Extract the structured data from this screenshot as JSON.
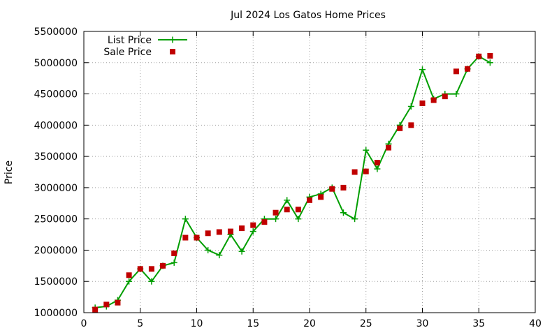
{
  "chart_data": {
    "type": "line",
    "title": "Jul 2024 Los Gatos Home Prices",
    "xlabel": "",
    "ylabel": "Price",
    "xlim": [
      0,
      40
    ],
    "ylim": [
      1000000,
      5500000
    ],
    "xticks": [
      0,
      5,
      10,
      15,
      20,
      25,
      30,
      35,
      40
    ],
    "yticks": [
      1000000,
      1500000,
      2000000,
      2500000,
      3000000,
      3500000,
      4000000,
      4500000,
      5000000,
      5500000
    ],
    "grid": true,
    "legend": "top-left",
    "series": [
      {
        "name": "List Price",
        "style": "linespoints",
        "marker": "plus",
        "color": "#009e00",
        "x": [
          1,
          2,
          3,
          4,
          5,
          6,
          7,
          8,
          9,
          10,
          11,
          12,
          13,
          14,
          15,
          16,
          17,
          18,
          19,
          20,
          21,
          22,
          23,
          24,
          25,
          26,
          27,
          28,
          29,
          30,
          31,
          32,
          33,
          34,
          35,
          36
        ],
        "values": [
          1080000,
          1100000,
          1200000,
          1500000,
          1700000,
          1500000,
          1750000,
          1800000,
          2500000,
          2200000,
          2000000,
          1920000,
          2250000,
          1980000,
          2300000,
          2500000,
          2500000,
          2800000,
          2500000,
          2850000,
          2900000,
          3000000,
          2600000,
          2500000,
          3600000,
          3300000,
          3700000,
          4000000,
          4300000,
          4890000,
          4420000,
          4500000,
          4500000,
          4900000,
          5100000,
          5000000
        ]
      },
      {
        "name": "Sale Price",
        "style": "points",
        "marker": "square",
        "color": "#c00000",
        "x": [
          1,
          2,
          3,
          4,
          5,
          6,
          7,
          8,
          9,
          10,
          11,
          12,
          13,
          14,
          15,
          16,
          17,
          18,
          19,
          20,
          21,
          22,
          23,
          24,
          25,
          26,
          27,
          28,
          29,
          30,
          31,
          32,
          33,
          34,
          35,
          36
        ],
        "values": [
          1050000,
          1130000,
          1160000,
          1600000,
          1700000,
          1700000,
          1750000,
          1950000,
          2200000,
          2200000,
          2270000,
          2290000,
          2300000,
          2350000,
          2400000,
          2450000,
          2600000,
          2650000,
          2650000,
          2800000,
          2850000,
          2980000,
          3000000,
          3250000,
          3260000,
          3400000,
          3640000,
          3950000,
          4000000,
          4350000,
          4400000,
          4460000,
          4860000,
          4900000,
          5100000,
          5110000
        ]
      }
    ]
  }
}
